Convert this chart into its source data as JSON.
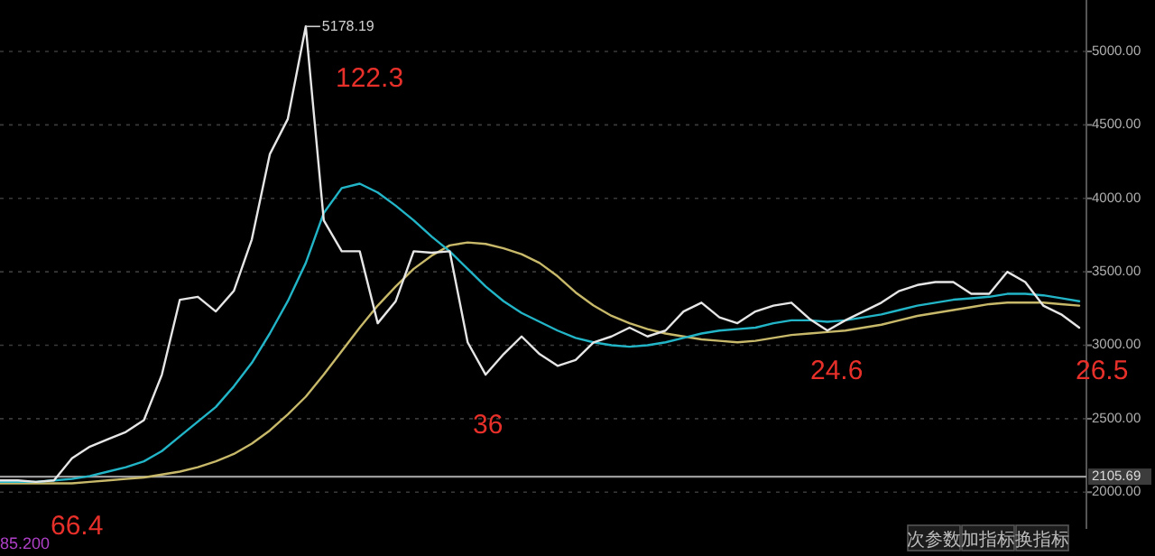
{
  "chart_data": {
    "type": "line",
    "categories": [
      null,
      null,
      null,
      null,
      null,
      null,
      null,
      null,
      null,
      null,
      null,
      null,
      null,
      null,
      null,
      null,
      null,
      null,
      null,
      null,
      null,
      null,
      null,
      null,
      null,
      null,
      null,
      null,
      null,
      null,
      null,
      null,
      null,
      null,
      null,
      null,
      null,
      null,
      null,
      null,
      null,
      null,
      null,
      null,
      null,
      null,
      null,
      null,
      null,
      null,
      null,
      null,
      null,
      null,
      null,
      null,
      null,
      null,
      null,
      null,
      null
    ],
    "series": [
      {
        "color": "#e6e6e6",
        "values": [
          2080,
          2080,
          2070,
          2080,
          2230,
          2310,
          2360,
          2410,
          2490,
          2800,
          3310,
          3330,
          3230,
          3370,
          3720,
          4300,
          4540,
          5170,
          3850,
          3640,
          3640,
          3150,
          3300,
          3640,
          3630,
          3640,
          3020,
          2800,
          2940,
          3060,
          2940,
          2860,
          2900,
          3020,
          3060,
          3120,
          3060,
          3100,
          3230,
          3290,
          3190,
          3150,
          3230,
          3270,
          3290,
          3180,
          3100,
          3170,
          3230,
          3290,
          3370,
          3410,
          3430,
          3430,
          3350,
          3350,
          3500,
          3430,
          3270,
          3210,
          3120
        ]
      },
      {
        "color": "#22b5c8",
        "values": [
          2070,
          2070,
          2070,
          2080,
          2090,
          2110,
          2140,
          2170,
          2210,
          2280,
          2380,
          2480,
          2580,
          2720,
          2880,
          3080,
          3300,
          3560,
          3900,
          4070,
          4100,
          4040,
          3950,
          3850,
          3740,
          3640,
          3520,
          3400,
          3300,
          3220,
          3160,
          3100,
          3050,
          3020,
          3000,
          2990,
          3000,
          3020,
          3050,
          3080,
          3100,
          3110,
          3120,
          3150,
          3170,
          3170,
          3160,
          3170,
          3190,
          3210,
          3240,
          3270,
          3290,
          3310,
          3320,
          3330,
          3350,
          3350,
          3340,
          3320,
          3300
        ]
      },
      {
        "color": "#c8b96a",
        "values": [
          2060,
          2060,
          2060,
          2060,
          2060,
          2070,
          2080,
          2090,
          2100,
          2120,
          2140,
          2170,
          2210,
          2260,
          2330,
          2420,
          2530,
          2650,
          2800,
          2960,
          3120,
          3270,
          3400,
          3520,
          3610,
          3680,
          3700,
          3690,
          3660,
          3620,
          3560,
          3470,
          3360,
          3270,
          3200,
          3150,
          3110,
          3080,
          3060,
          3040,
          3030,
          3020,
          3030,
          3050,
          3070,
          3080,
          3090,
          3100,
          3120,
          3140,
          3170,
          3200,
          3220,
          3240,
          3260,
          3280,
          3290,
          3290,
          3290,
          3280,
          3270
        ]
      }
    ],
    "ylim": [
      1750,
      5350
    ],
    "yticks": [
      {
        "value": 2000,
        "label": "2000.00"
      },
      {
        "value": 2500,
        "label": "2500.00"
      },
      {
        "value": 3000,
        "label": "3000.00"
      },
      {
        "value": 3500,
        "label": "3500.00"
      },
      {
        "value": 4000,
        "label": "4000.00"
      },
      {
        "value": 4500,
        "label": "4500.00"
      },
      {
        "value": 5000,
        "label": "5000.00"
      }
    ],
    "grid": "y",
    "tick_labels": "y",
    "ref_lines": [
      {
        "axis": "y",
        "value": 2105.69,
        "label": "2105.69",
        "color": "#9a9a9a"
      }
    ],
    "annotations": [
      "5178.19",
      "122.3",
      "36",
      "24.6",
      "26.5",
      "66.4",
      "85.200",
      "次参数",
      "加指标",
      "换指标"
    ]
  }
}
